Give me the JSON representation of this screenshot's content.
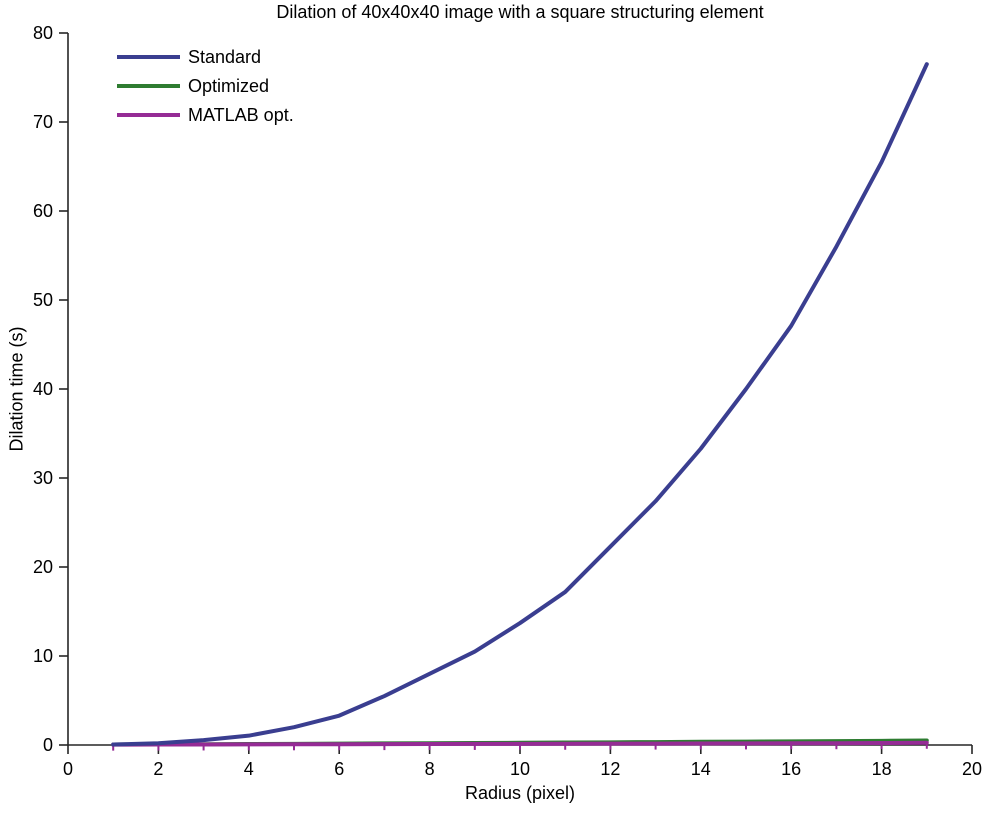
{
  "chart_data": {
    "type": "line",
    "title": "Dilation of 40x40x40 image with a square structuring element",
    "xlabel": "Radius (pixel)",
    "ylabel": "Dilation time (s)",
    "xlim": [
      0,
      20
    ],
    "ylim": [
      0,
      80
    ],
    "xticks": [
      0,
      2,
      4,
      6,
      8,
      10,
      12,
      14,
      16,
      18,
      20
    ],
    "yticks": [
      0,
      10,
      20,
      30,
      40,
      50,
      60,
      70,
      80
    ],
    "grid": false,
    "box": false,
    "tick_direction": "out",
    "legend_position": "top-left-inside",
    "legend_border": false,
    "axis_color": "#262626",
    "text_color": "#000000",
    "x": [
      1,
      2,
      3,
      4,
      5,
      6,
      7,
      8,
      9,
      10,
      11,
      12,
      13,
      14,
      15,
      16,
      17,
      18,
      19
    ],
    "series": [
      {
        "name": "Standard",
        "color": "#3A3E90",
        "marker": "none",
        "values": [
          0.05,
          0.2,
          0.55,
          1.05,
          2.0,
          3.3,
          5.5,
          8.0,
          10.5,
          13.7,
          17.2,
          22.3,
          27.4,
          33.3,
          40.0,
          47.1,
          56.0,
          65.5,
          76.5
        ]
      },
      {
        "name": "Optimized",
        "color": "#2E7C31",
        "marker": "none",
        "values": [
          0.06,
          0.07,
          0.09,
          0.11,
          0.13,
          0.15,
          0.18,
          0.2,
          0.23,
          0.25,
          0.28,
          0.3,
          0.33,
          0.36,
          0.38,
          0.41,
          0.44,
          0.47,
          0.5
        ]
      },
      {
        "name": "MATLAB opt.",
        "color": "#952B95",
        "marker": "tick-down",
        "values": [
          0.04,
          0.05,
          0.06,
          0.07,
          0.08,
          0.09,
          0.1,
          0.11,
          0.12,
          0.13,
          0.14,
          0.15,
          0.16,
          0.17,
          0.18,
          0.19,
          0.2,
          0.22,
          0.25
        ]
      }
    ]
  }
}
